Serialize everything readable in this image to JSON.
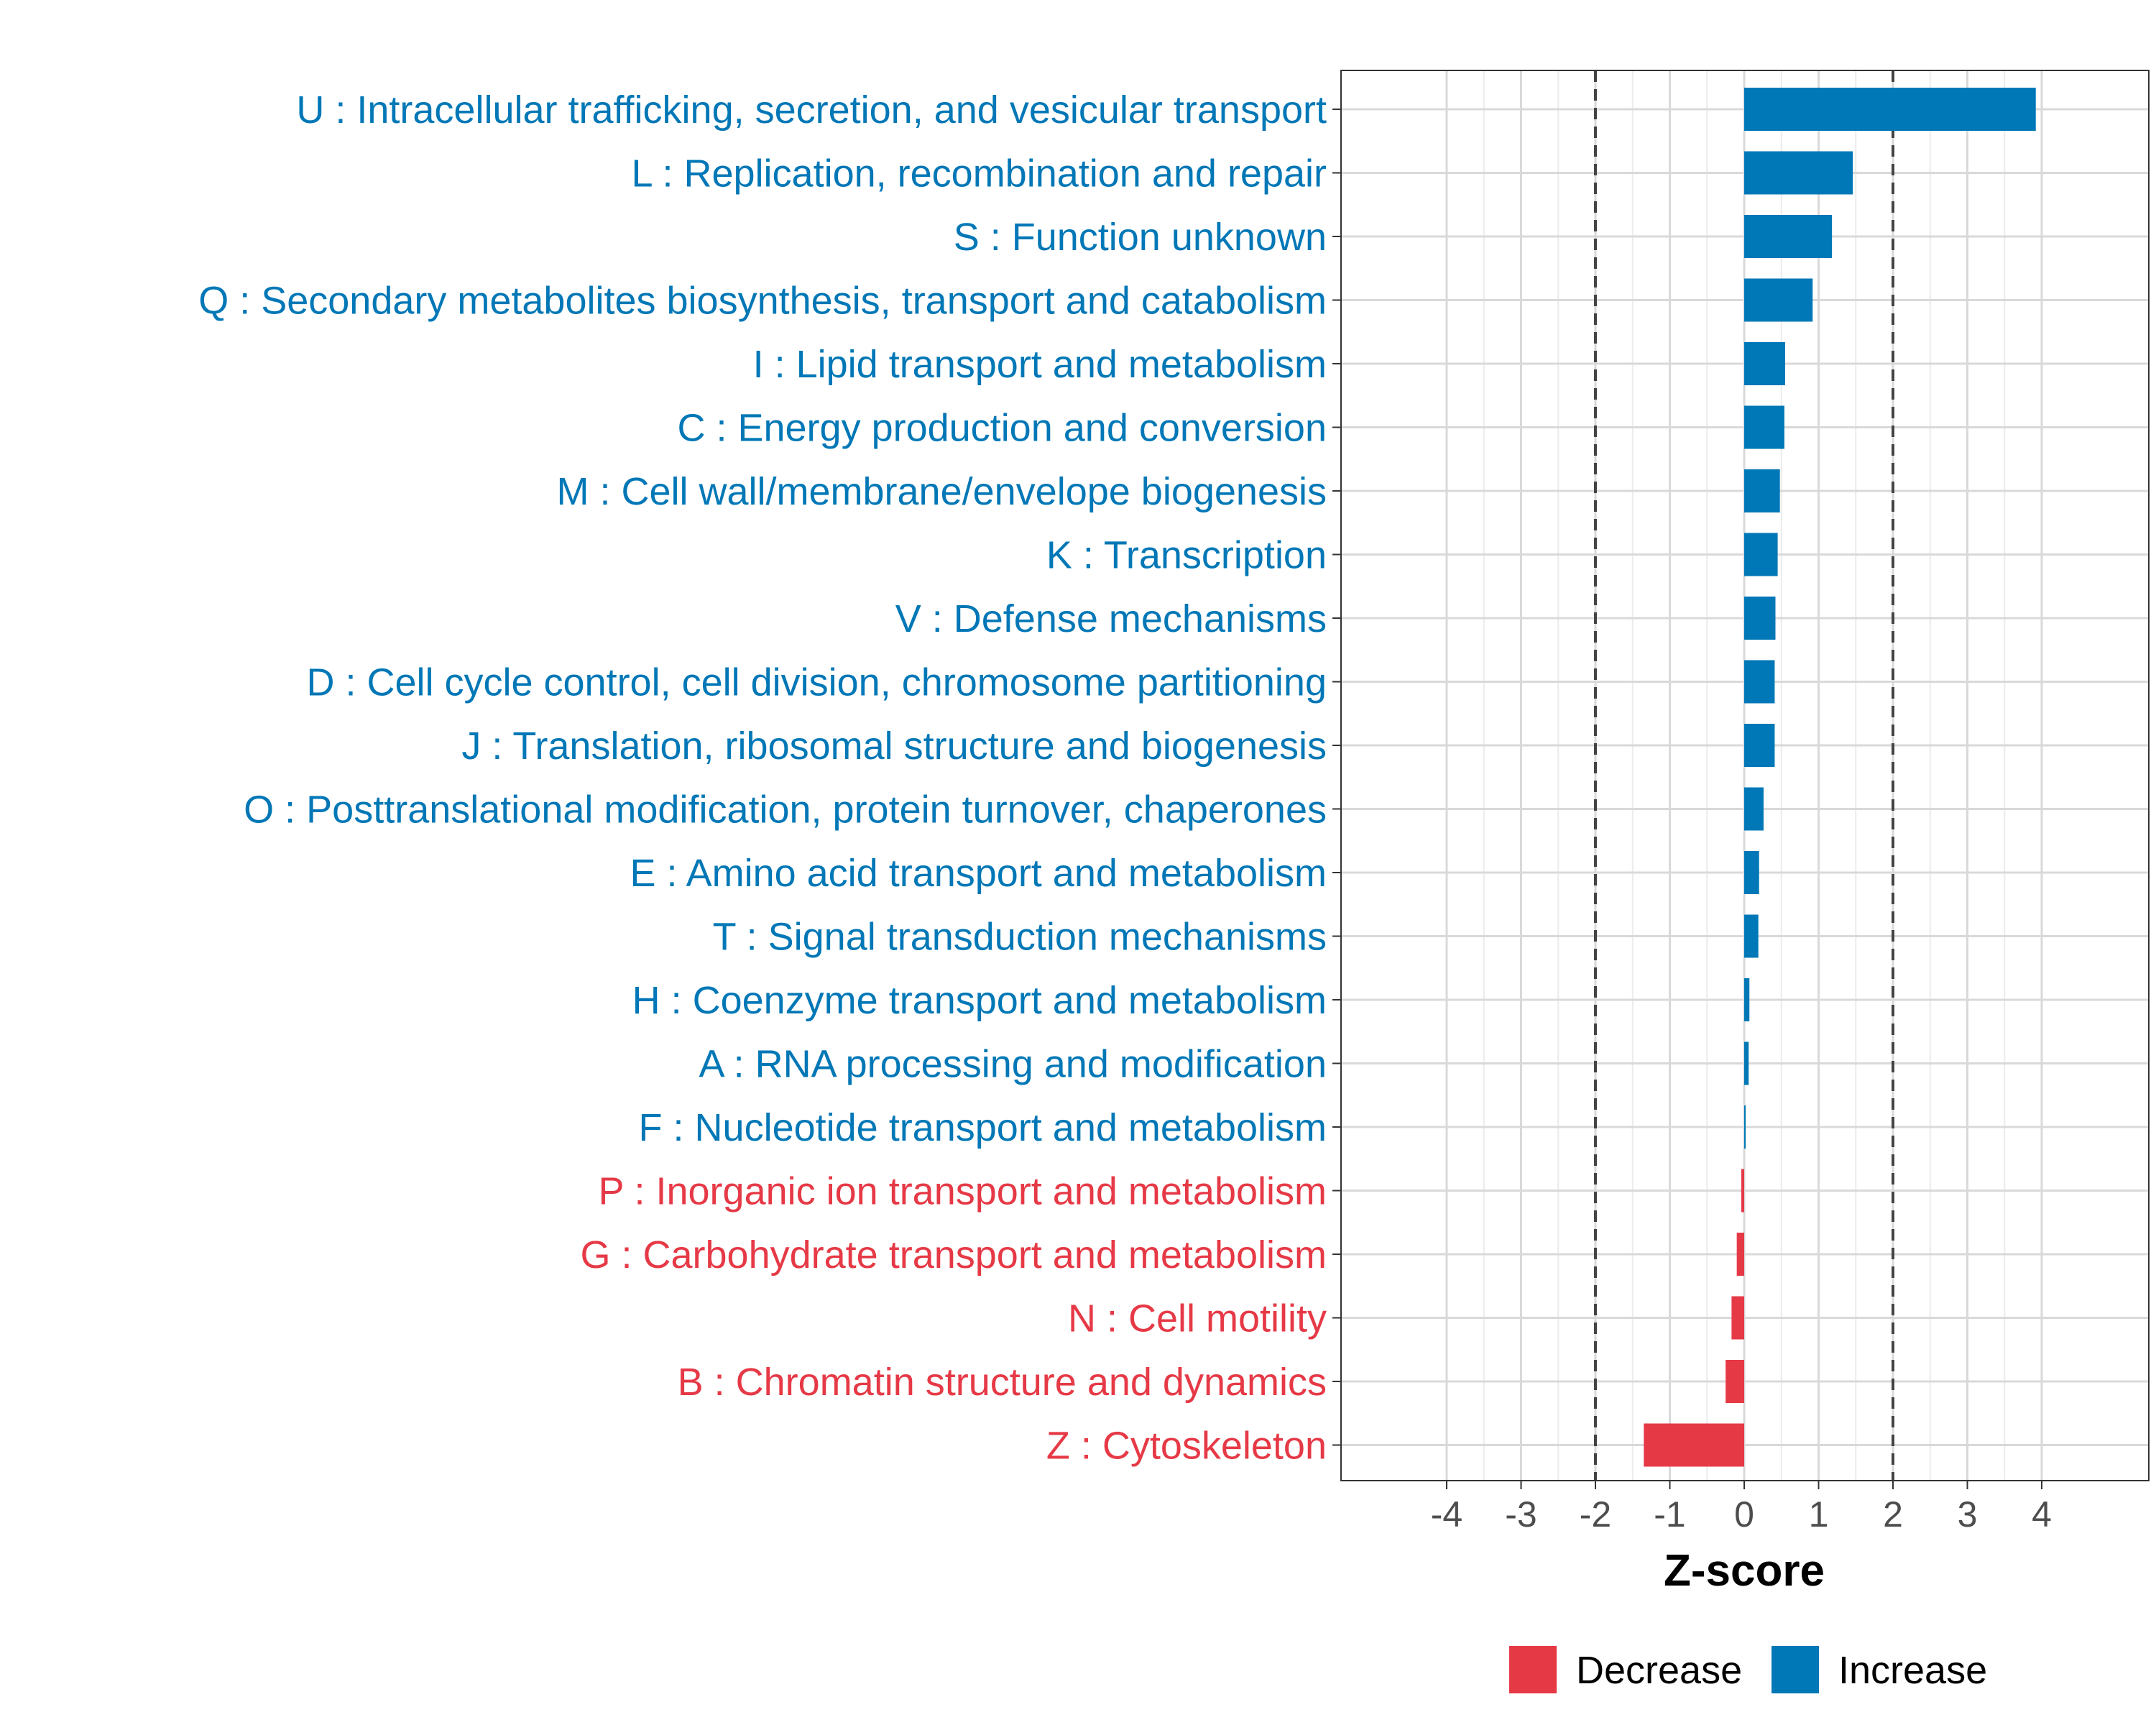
{
  "chart_data": {
    "type": "bar",
    "orientation": "horizontal",
    "title": "",
    "xlabel": "Z-score",
    "ylabel": "",
    "xlim": [
      -5.5,
      5.5
    ],
    "xticks": [
      -4,
      -3,
      -2,
      -1,
      0,
      1,
      2,
      3,
      4
    ],
    "reference_lines": [
      -2,
      2
    ],
    "grid": true,
    "legend_position": "bottom-right",
    "categories": [
      "U : Intracellular trafficking, secretion, and vesicular transport",
      "L : Replication, recombination and repair",
      "S : Function unknown",
      "Q : Secondary metabolites biosynthesis, transport and catabolism",
      "I : Lipid transport and metabolism",
      "C : Energy production and conversion",
      "M : Cell wall/membrane/envelope biogenesis",
      "K : Transcription",
      "V : Defense mechanisms",
      "D : Cell cycle control, cell division, chromosome partitioning",
      "J : Translation, ribosomal structure and biogenesis",
      "O : Posttranslational modification, protein turnover, chaperones",
      "E : Amino acid transport and metabolism",
      "T : Signal transduction mechanisms",
      "H : Coenzyme transport and metabolism",
      "A : RNA processing and modification",
      "F : Nucleotide transport and metabolism",
      "P : Inorganic ion transport and metabolism",
      "G : Carbohydrate transport and metabolism",
      "N : Cell motility",
      "B : Chromatin structure and dynamics",
      "Z : Cytoskeleton"
    ],
    "values": [
      3.92,
      1.46,
      1.18,
      0.92,
      0.55,
      0.54,
      0.48,
      0.45,
      0.42,
      0.41,
      0.41,
      0.26,
      0.2,
      0.19,
      0.07,
      0.06,
      0.01,
      -0.04,
      -0.1,
      -0.17,
      -0.25,
      -1.35
    ],
    "direction": [
      "Increase",
      "Increase",
      "Increase",
      "Increase",
      "Increase",
      "Increase",
      "Increase",
      "Increase",
      "Increase",
      "Increase",
      "Increase",
      "Increase",
      "Increase",
      "Increase",
      "Increase",
      "Increase",
      "Increase",
      "Decrease",
      "Decrease",
      "Decrease",
      "Decrease",
      "Decrease"
    ],
    "legend": [
      {
        "name": "Decrease",
        "color": "#e63946"
      },
      {
        "name": "Increase",
        "color": "#0077b6"
      }
    ],
    "colors": {
      "Increase": "#0077b6",
      "Decrease": "#e63946"
    }
  }
}
